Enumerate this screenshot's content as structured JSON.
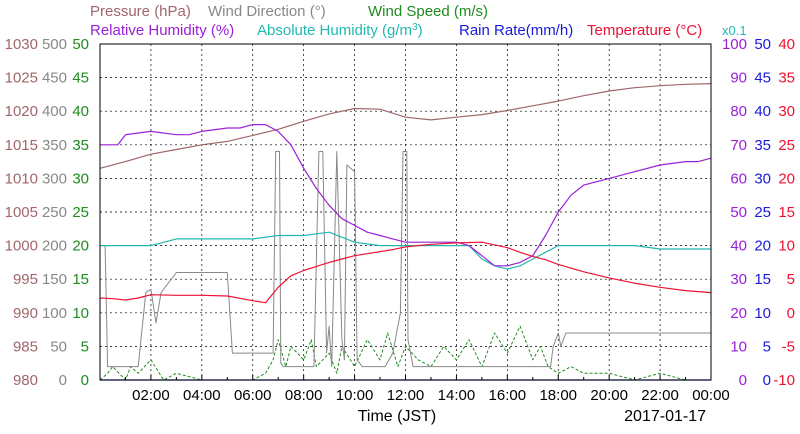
{
  "chart_data": {
    "type": "line",
    "xlabel": "Time (JST)",
    "date_label": "2017-01-17",
    "x_range": [
      "00:00",
      "24:00"
    ],
    "x_tick_labels": [
      "02:00",
      "04:00",
      "06:00",
      "08:00",
      "10:00",
      "12:00",
      "14:00",
      "16:00",
      "18:00",
      "20:00",
      "22:00",
      "00:00"
    ],
    "grid": true,
    "legend": [
      {
        "label": "Pressure (hPa)",
        "color": "#a0666a"
      },
      {
        "label": "Wind Direction (°)",
        "color": "#888888"
      },
      {
        "label": "Wind Speed (m/s)",
        "color": "#1f8c1f"
      },
      {
        "label": "Relative Humidity (%)",
        "color": "#9a20d8"
      },
      {
        "label": "Absolute Humidity (g/m",
        "sup": "3",
        "after": ")",
        "color": "#22b8b0"
      },
      {
        "label": "Rain Rate(mm/h)",
        "color": "#1a1ad8"
      },
      {
        "label": "Temperature (°C)",
        "color": "#ee1133"
      },
      {
        "label": "x0.1",
        "color": "#22b8b0"
      }
    ],
    "axes": [
      {
        "name": "pressure",
        "unit": "hPa",
        "side": "left",
        "color": "#a0666a",
        "range": [
          980,
          1030
        ],
        "ticks": [
          "980",
          "985",
          "990",
          "995",
          "1000",
          "1005",
          "1010",
          "1015",
          "1020",
          "1025",
          "1030"
        ]
      },
      {
        "name": "wind-direction",
        "unit": "°",
        "side": "left",
        "color": "#888888",
        "range": [
          0,
          500
        ],
        "ticks": [
          "0",
          "50",
          "100",
          "150",
          "200",
          "250",
          "300",
          "350",
          "400",
          "450",
          "500"
        ]
      },
      {
        "name": "wind-speed",
        "unit": "m/s",
        "side": "left",
        "color": "#1f8c1f",
        "range": [
          0,
          50
        ],
        "ticks": [
          "0",
          "5",
          "10",
          "15",
          "20",
          "25",
          "30",
          "35",
          "40",
          "45",
          "50"
        ]
      },
      {
        "name": "relative-humidity",
        "unit": "%",
        "side": "right",
        "color": "#9a20d8",
        "range": [
          0,
          100
        ],
        "ticks": [
          "0",
          "10",
          "20",
          "30",
          "40",
          "50",
          "60",
          "70",
          "80",
          "90",
          "100"
        ]
      },
      {
        "name": "rain-rate",
        "unit": "mm/h",
        "side": "right",
        "color": "#1a1ad8",
        "range": [
          0,
          50
        ],
        "ticks": [
          "0",
          "5",
          "10",
          "15",
          "20",
          "25",
          "30",
          "35",
          "40",
          "45",
          "50"
        ]
      },
      {
        "name": "temperature",
        "unit": "°C",
        "side": "right",
        "color": "#ee1133",
        "range": [
          -10,
          40
        ],
        "ticks": [
          "-10",
          "-5",
          "0",
          "5",
          "10",
          "15",
          "20",
          "25",
          "30",
          "35",
          "40"
        ]
      }
    ],
    "series": [
      {
        "name": "Pressure (hPa)",
        "axis": "pressure",
        "color": "#a0666a",
        "x": [
          0,
          1,
          2,
          3,
          4,
          5,
          6,
          7,
          8,
          9,
          10,
          11,
          12,
          13,
          14,
          15,
          16,
          17,
          18,
          19,
          20,
          21,
          22,
          23,
          24
        ],
        "y": [
          1011.5,
          1012.5,
          1013.6,
          1014.3,
          1015.0,
          1015.5,
          1016.4,
          1017.3,
          1018.5,
          1019.6,
          1020.4,
          1020.3,
          1019.1,
          1018.7,
          1019.1,
          1019.5,
          1020.1,
          1020.8,
          1021.5,
          1022.3,
          1023.0,
          1023.5,
          1023.8,
          1024.0,
          1024.1
        ]
      },
      {
        "name": "Relative Humidity (%)",
        "axis": "relative-humidity",
        "color": "#9a20d8",
        "x": [
          0,
          0.7,
          1,
          2,
          3,
          3.5,
          4,
          5,
          5.5,
          6,
          6.5,
          7,
          7.5,
          8,
          8.5,
          9,
          9.5,
          10,
          10.5,
          11,
          11.5,
          12,
          13,
          14,
          14.5,
          15,
          15.5,
          16,
          16.5,
          17,
          17.5,
          18,
          18.5,
          19,
          20,
          21,
          22,
          23,
          23.5,
          24
        ],
        "y": [
          70,
          70,
          73,
          74,
          73,
          73,
          74,
          75,
          75,
          76,
          76,
          74,
          70,
          63,
          57,
          52,
          48,
          46,
          44,
          43,
          42,
          41,
          41,
          41,
          40,
          37,
          34,
          34,
          35,
          37,
          43,
          50,
          55,
          58,
          60,
          62,
          64,
          65,
          65,
          66
        ]
      },
      {
        "name": "Absolute Humidity (g/m3)",
        "axis": "wind-speed",
        "color": "#22b8b0",
        "x": [
          0,
          1,
          2,
          3,
          4,
          5,
          6,
          7,
          8,
          9,
          10,
          11,
          12,
          13,
          14,
          14.5,
          15,
          15.5,
          16,
          16.5,
          17,
          17.5,
          18,
          19,
          20,
          21,
          22,
          23,
          24
        ],
        "y": [
          20,
          20,
          20,
          21,
          21,
          21,
          21,
          21.5,
          21.5,
          22,
          20.5,
          20,
          20,
          20,
          20,
          20,
          18,
          17,
          16.5,
          17,
          18,
          19,
          20,
          20,
          20,
          20,
          19.5,
          19.5,
          19.5
        ]
      },
      {
        "name": "Temperature (°C)",
        "axis": "temperature",
        "color": "#ee1133",
        "x": [
          0,
          0.5,
          1,
          1.5,
          2,
          3,
          4,
          5,
          6,
          6.5,
          7,
          7.5,
          8,
          8.5,
          9,
          9.5,
          10,
          10.5,
          11,
          11.5,
          12,
          13,
          14,
          15,
          16,
          16.5,
          17,
          17.5,
          18,
          19,
          20,
          21,
          22,
          23,
          24
        ],
        "y": [
          2.2,
          2.1,
          1.9,
          2.2,
          2.7,
          2.6,
          2.6,
          2.5,
          1.8,
          1.5,
          3.8,
          5.5,
          6.3,
          6.9,
          7.5,
          8.0,
          8.5,
          8.8,
          9.1,
          9.4,
          9.8,
          10.2,
          10.4,
          10.5,
          9.7,
          9.0,
          8.4,
          7.9,
          7.2,
          6.1,
          5.2,
          4.4,
          3.8,
          3.3,
          3.0
        ]
      },
      {
        "name": "Wind Direction (°)",
        "axis": "wind-direction",
        "color": "#888888",
        "x": [
          0,
          0.2,
          0.3,
          1.5,
          1.8,
          2,
          2.2,
          2.4,
          3,
          3.3,
          5.0,
          5.2,
          6.8,
          6.9,
          7.05,
          7.1,
          7.2,
          8.4,
          8.6,
          8.75,
          8.9,
          9.0,
          9.1,
          9.3,
          9.5,
          9.6,
          9.7,
          10.0,
          10.1,
          10.3,
          11.2,
          11.5,
          11.8,
          11.9,
          12.05,
          12.1,
          12.3,
          17.7,
          17.8,
          18.0,
          18.1,
          18.3,
          24
        ],
        "y": [
          200,
          200,
          20,
          20,
          130,
          135,
          85,
          130,
          160,
          160,
          160,
          40,
          40,
          340,
          340,
          25,
          20,
          20,
          340,
          340,
          40,
          80,
          20,
          340,
          60,
          30,
          320,
          310,
          30,
          20,
          20,
          40,
          100,
          340,
          340,
          60,
          20,
          20,
          50,
          70,
          50,
          70,
          70
        ]
      },
      {
        "name": "Wind Speed (m/s)",
        "axis": "wind-speed",
        "color": "#1f8c1f",
        "x": [
          0,
          0.3,
          0.5,
          1,
          1.2,
          1.5,
          2,
          2.5,
          3,
          4,
          5,
          6,
          6.5,
          6.8,
          7,
          7.3,
          7.5,
          8,
          8.3,
          8.5,
          9,
          9.3,
          9.5,
          10,
          10.5,
          11,
          11.3,
          11.7,
          12,
          12.5,
          13,
          13.5,
          14,
          14.5,
          15,
          15.5,
          16,
          16.5,
          17,
          17.3,
          17.6,
          18,
          18.5,
          19,
          20,
          21,
          22,
          23,
          24
        ],
        "y": [
          0,
          1,
          2,
          0,
          2,
          1,
          3,
          0,
          1,
          0,
          0,
          0,
          1,
          3,
          6,
          2,
          5,
          3,
          6,
          2,
          4,
          1,
          5,
          2,
          6,
          3,
          7,
          2,
          5,
          3,
          2,
          5,
          3,
          6,
          2,
          7,
          4,
          8,
          3,
          5,
          2,
          1,
          2,
          1,
          1,
          0,
          1,
          0,
          0
        ]
      },
      {
        "name": "Rain Rate(mm/h)",
        "axis": "rain-rate",
        "color": "#1a1ad8",
        "x": [
          0,
          24
        ],
        "y": [
          0,
          0
        ]
      }
    ]
  }
}
